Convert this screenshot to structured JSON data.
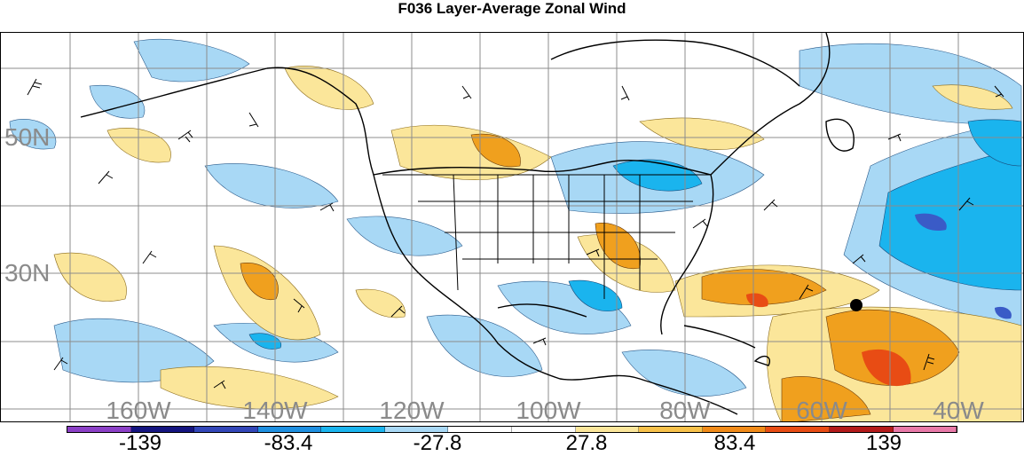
{
  "title": "F036 Layer-Average Zonal Wind",
  "lat_labels": [
    "50N",
    "30N"
  ],
  "lon_labels": [
    "160W",
    "140W",
    "120W",
    "100W",
    "80W",
    "60W",
    "40W"
  ],
  "colorbar": {
    "colors": [
      "#8b3fc6",
      "#14147f",
      "#3246b8",
      "#1e8fe0",
      "#1ab4ee",
      "#a8d8f5",
      "#ffffff",
      "#ffffff",
      "#fbe69a",
      "#f7c14a",
      "#f08a18",
      "#e84c14",
      "#b31a1a",
      "#e879a8"
    ],
    "labels": [
      "-139",
      "-83.4",
      "-27.8",
      "27.8",
      "83.4",
      "139"
    ]
  },
  "colors": {
    "light_blue": "#a8d8f5",
    "mid_blue": "#1ab4ee",
    "dark_blue": "#3a5bc7",
    "light_yellow": "#fbe69a",
    "orange": "#f0a01e",
    "red_orange": "#e84c14",
    "grid": "#8c8c8c",
    "coast": "#000000"
  }
}
